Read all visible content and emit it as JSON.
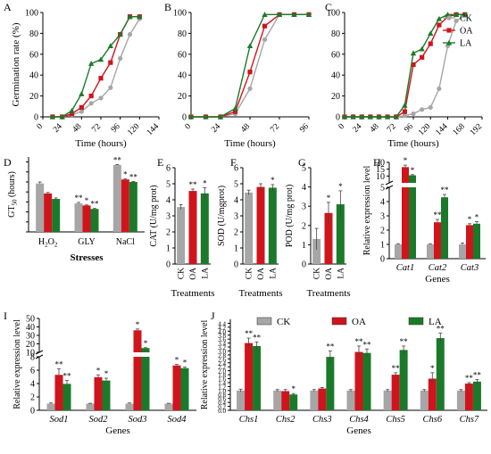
{
  "colors": {
    "CK": "#a6a6a6",
    "OA": "#d0141c",
    "LA": "#1b7a2a"
  },
  "chart_data": [
    {
      "panel": "A",
      "type": "line",
      "xlabel": "Time (hours)",
      "ylabel": "Germination rate (%)",
      "xlim": [
        0,
        144
      ],
      "ylim": [
        0,
        100
      ],
      "xticks": [
        0,
        24,
        48,
        72,
        96,
        120,
        144
      ],
      "yticks": [
        0,
        20,
        40,
        60,
        80,
        100
      ],
      "series": [
        {
          "key": "CK",
          "x": [
            12,
            24,
            36,
            48,
            60,
            72,
            84,
            96,
            108,
            120
          ],
          "y": [
            0,
            0,
            2,
            5,
            13,
            18,
            28,
            56,
            79,
            94
          ]
        },
        {
          "key": "OA",
          "x": [
            12,
            24,
            36,
            48,
            60,
            72,
            84,
            96,
            108,
            120
          ],
          "y": [
            0,
            0,
            3,
            9,
            20,
            37,
            52,
            79,
            96,
            96
          ]
        },
        {
          "key": "LA",
          "x": [
            12,
            24,
            36,
            48,
            60,
            72,
            84,
            96,
            108,
            120
          ],
          "y": [
            0,
            0,
            6,
            22,
            51,
            55,
            68,
            79,
            96,
            96
          ]
        }
      ]
    },
    {
      "panel": "B",
      "type": "line",
      "xlabel": "Time (hours)",
      "ylabel": "",
      "xlim": [
        0,
        96
      ],
      "ylim": [
        0,
        100
      ],
      "xticks": [
        0,
        24,
        48,
        72,
        96
      ],
      "yticks": [
        0,
        20,
        40,
        60,
        80,
        100
      ],
      "series": [
        {
          "key": "CK",
          "x": [
            0,
            12,
            24,
            36,
            48,
            60,
            72,
            84,
            96
          ],
          "y": [
            0,
            0,
            0,
            3,
            27,
            74,
            98,
            98,
            98
          ]
        },
        {
          "key": "OA",
          "x": [
            0,
            12,
            24,
            36,
            48,
            60,
            72,
            84,
            96
          ],
          "y": [
            0,
            0,
            0,
            5,
            43,
            87,
            98,
            98,
            98
          ]
        },
        {
          "key": "LA",
          "x": [
            0,
            12,
            24,
            36,
            48,
            60,
            72,
            84,
            96
          ],
          "y": [
            0,
            0,
            0,
            8,
            68,
            98,
            98,
            98,
            98
          ]
        }
      ]
    },
    {
      "panel": "C",
      "type": "line",
      "xlabel": "Time (hours)",
      "ylabel": "",
      "xlim": [
        0,
        192
      ],
      "ylim": [
        0,
        100
      ],
      "xticks": [
        0,
        24,
        48,
        72,
        96,
        120,
        144,
        168,
        192
      ],
      "yticks": [
        0,
        20,
        40,
        60,
        80,
        100
      ],
      "series": [
        {
          "key": "CK",
          "name": "CK",
          "x": [
            0,
            12,
            24,
            36,
            48,
            60,
            72,
            84,
            96,
            108,
            120,
            132,
            144,
            156,
            168
          ],
          "y": [
            0,
            0,
            0,
            0,
            0,
            0,
            0,
            1,
            3,
            7,
            9,
            27,
            68,
            92,
            97
          ]
        },
        {
          "key": "OA",
          "name": "OA",
          "x": [
            0,
            12,
            24,
            36,
            48,
            60,
            72,
            84,
            96,
            108,
            120,
            132,
            144,
            156,
            168
          ],
          "y": [
            0,
            0,
            0,
            0,
            0,
            0,
            0,
            5,
            50,
            57,
            70,
            88,
            96,
            98,
            98
          ]
        },
        {
          "key": "LA",
          "name": "LA",
          "x": [
            0,
            12,
            24,
            36,
            48,
            60,
            72,
            84,
            96,
            108,
            120,
            132,
            144,
            156,
            168
          ],
          "y": [
            0,
            0,
            0,
            0,
            0,
            0,
            0,
            11,
            61,
            65,
            80,
            94,
            98,
            98,
            98
          ]
        }
      ]
    },
    {
      "panel": "D",
      "type": "bar",
      "xlabel": "Stresses",
      "ylabel": "GT50 (hours)",
      "ylim": [
        0,
        150
      ],
      "yticks": [
        0,
        20,
        40,
        60,
        80,
        100,
        120,
        140
      ],
      "categories": [
        "H2O2",
        "GLY",
        "NaCl"
      ],
      "series": [
        {
          "key": "CK",
          "values": [
            97,
            57,
            134
          ],
          "err": [
            3,
            2,
            1
          ]
        },
        {
          "key": "OA",
          "values": [
            77,
            53,
            105
          ],
          "err": [
            2,
            1,
            1
          ]
        },
        {
          "key": "LA",
          "values": [
            66,
            46,
            100
          ],
          "err": [
            2,
            1,
            1
          ]
        }
      ],
      "stars": [
        [
          "",
          "**",
          "**"
        ],
        [
          "",
          "*",
          "*"
        ],
        [
          "",
          "**",
          "**"
        ]
      ]
    },
    {
      "panel": "E",
      "type": "bar",
      "xlabel": "Treatments",
      "ylabel": "CAT (U/mg prot)",
      "ylim": [
        0,
        6
      ],
      "yticks": [
        0,
        1,
        2,
        3,
        4,
        5,
        6
      ],
      "categories": [
        "CK",
        "OA",
        "LA"
      ],
      "values": [
        3.55,
        4.55,
        4.4
      ],
      "err": [
        0.15,
        0.12,
        0.35
      ],
      "stars": [
        "",
        "**",
        "*"
      ]
    },
    {
      "panel": "F",
      "type": "bar",
      "xlabel": "Treatments",
      "ylabel": "SOD (U/mgprot)",
      "ylim": [
        0,
        6
      ],
      "yticks": [
        0,
        1,
        2,
        3,
        4,
        5,
        6
      ],
      "categories": [
        "CK",
        "OA",
        "LA"
      ],
      "values": [
        4.45,
        4.8,
        4.75
      ],
      "err": [
        0.15,
        0.2,
        0.2
      ],
      "stars": [
        "",
        "",
        "*"
      ]
    },
    {
      "panel": "G",
      "type": "bar",
      "xlabel": "Treatments",
      "ylabel": "POD (U/mg prot)",
      "ylim": [
        0,
        5
      ],
      "yticks": [
        0,
        1,
        2,
        3,
        4,
        5
      ],
      "categories": [
        "CK",
        "OA",
        "LA"
      ],
      "values": [
        1.3,
        2.65,
        3.1
      ],
      "err": [
        0.55,
        0.55,
        0.7
      ],
      "stars": [
        "",
        "*",
        "*"
      ]
    },
    {
      "panel": "H",
      "type": "bar",
      "broken_axis": true,
      "xlabel": "Genes",
      "ylabel": "Relative expression level",
      "lower_ylim": [
        0,
        5
      ],
      "lower_yticks": [
        0,
        1,
        2,
        3,
        4,
        5
      ],
      "upper_ylim": [
        5,
        20
      ],
      "upper_yticks": [
        10,
        15,
        20
      ],
      "categories": [
        "Cat1",
        "Cat2",
        "Cat3"
      ],
      "series": [
        {
          "key": "CK",
          "values": [
            1.0,
            1.0,
            1.0
          ],
          "err": [
            0.05,
            0.05,
            0.1
          ]
        },
        {
          "key": "OA",
          "values": [
            16.5,
            2.55,
            2.35
          ],
          "err": [
            1.5,
            0.2,
            0.1
          ]
        },
        {
          "key": "LA",
          "values": [
            10.5,
            4.3,
            2.45
          ],
          "err": [
            0.5,
            0.2,
            0.15
          ]
        }
      ],
      "stars": [
        [
          "",
          "",
          ""
        ],
        [
          "*",
          "**",
          "*"
        ],
        [
          "*",
          "**",
          "*"
        ]
      ]
    },
    {
      "panel": "I",
      "type": "bar",
      "broken_axis": true,
      "xlabel": "Genes",
      "ylabel": "Relative expression level",
      "lower_ylim": [
        0,
        8
      ],
      "lower_yticks": [
        0,
        2,
        4,
        6,
        8
      ],
      "upper_ylim": [
        10,
        50
      ],
      "upper_yticks": [
        10,
        20,
        30,
        40,
        50
      ],
      "categories": [
        "Sod1",
        "Sod2",
        "Sod3",
        "Sod4"
      ],
      "series": [
        {
          "key": "CK",
          "values": [
            1.0,
            1.0,
            1.0,
            1.0
          ],
          "err": [
            0.1,
            0.05,
            0.1,
            0.05
          ]
        },
        {
          "key": "OA",
          "values": [
            5.3,
            4.95,
            36,
            6.7
          ],
          "err": [
            0.9,
            0.35,
            1.5,
            0.15
          ]
        },
        {
          "key": "LA",
          "values": [
            3.95,
            4.45,
            15,
            6.3
          ],
          "err": [
            0.5,
            0.35,
            0.5,
            0.15
          ]
        }
      ],
      "stars": [
        [
          "",
          "",
          "",
          ""
        ],
        [
          "**",
          "*",
          "*",
          "*"
        ],
        [
          "**",
          "*",
          "*",
          "*"
        ]
      ]
    },
    {
      "panel": "J",
      "type": "bar",
      "xlabel": "Genes",
      "ylabel": "Relative expression level",
      "ylim": [
        0,
        4.6
      ],
      "yticks": [
        0,
        0.2,
        0.4,
        0.6,
        0.8,
        1.0,
        1.2,
        1.4,
        1.6,
        1.8,
        2.0,
        2.2,
        2.4,
        2.6,
        2.8,
        3.0,
        3.2,
        3.4,
        3.6,
        3.8,
        4.0,
        4.2,
        4.4
      ],
      "categories": [
        "Chs1",
        "Chs2",
        "Chs3",
        "Chs4",
        "Chs5",
        "Chs6",
        "Chs7"
      ],
      "legend": [
        "CK",
        "OA",
        "LA"
      ],
      "series": [
        {
          "key": "CK",
          "values": [
            1.0,
            1.0,
            1.0,
            1.0,
            1.0,
            1.0,
            1.0
          ],
          "err": [
            0.07,
            0.05,
            0.05,
            0.05,
            0.05,
            0.05,
            0.05
          ]
        },
        {
          "key": "OA",
          "values": [
            3.4,
            0.97,
            1.1,
            2.95,
            1.8,
            1.6,
            1.35
          ],
          "err": [
            0.25,
            0.08,
            0.05,
            0.3,
            0.1,
            0.3,
            0.05
          ]
        },
        {
          "key": "LA",
          "values": [
            3.25,
            0.8,
            2.7,
            2.9,
            3.05,
            3.65,
            1.45
          ],
          "err": [
            0.2,
            0.05,
            0.3,
            0.2,
            0.2,
            0.25,
            0.1
          ]
        }
      ],
      "stars": [
        [
          "",
          "",
          "",
          "",
          "",
          "",
          ""
        ],
        [
          "**",
          "",
          "",
          "**",
          "**",
          "*",
          "**"
        ],
        [
          "**",
          "*",
          "**",
          "**",
          "**",
          "**",
          "**"
        ]
      ]
    }
  ]
}
